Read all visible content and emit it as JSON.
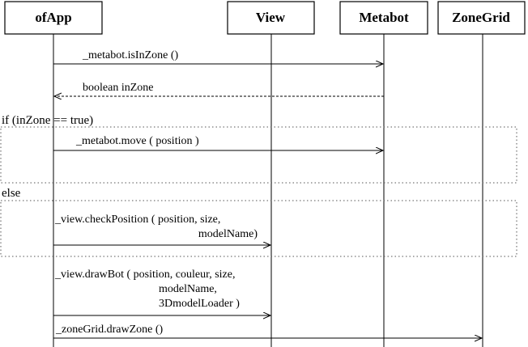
{
  "participants": [
    {
      "id": "ofapp",
      "label": "ofApp"
    },
    {
      "id": "view",
      "label": "View"
    },
    {
      "id": "metabot",
      "label": "Metabot"
    },
    {
      "id": "zonegrid",
      "label": "ZoneGrid"
    }
  ],
  "messages": {
    "is_in_zone": [
      "_metabot.isInZone ()"
    ],
    "boolean_return": [
      "boolean inZone"
    ],
    "move": [
      "_metabot.move ( position )"
    ],
    "check_position": [
      "_view.checkPosition ( position, size,",
      "modelName)"
    ],
    "draw_bot": [
      "_view.drawBot ( position, couleur, size,",
      "modelName,",
      "3DmodelLoader )"
    ],
    "draw_zone": [
      "_zoneGrid.drawZone ()"
    ]
  },
  "fragments": {
    "if_guard": "if (inZone ==  true)",
    "else_guard": "else"
  }
}
